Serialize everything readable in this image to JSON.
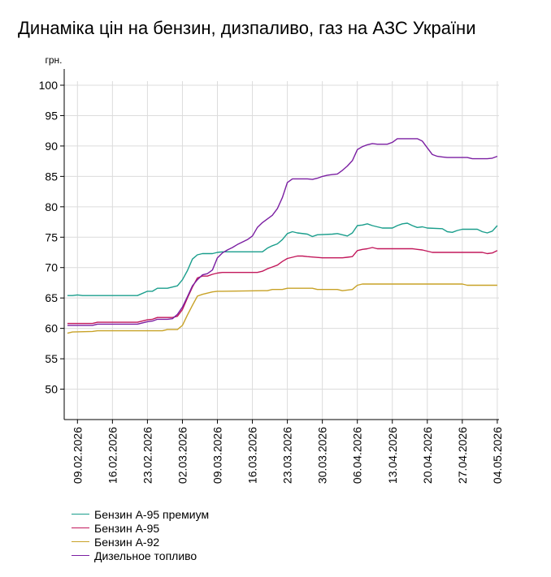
{
  "chart_data": {
    "type": "line",
    "title": "Динаміка цін на бензин, дизпаливо, газ на АЗС України",
    "ylabel": "грн.",
    "xlabel": "",
    "ylim": [
      45,
      100
    ],
    "yticks": [
      50,
      55,
      60,
      65,
      70,
      75,
      80,
      85,
      90,
      95,
      100
    ],
    "grid": true,
    "legend_position": "bottom-left",
    "x_tick_labels": [
      "09.02.2026",
      "16.02.2026",
      "23.02.2026",
      "02.03.2026",
      "09.03.2026",
      "16.03.2026",
      "23.03.2026",
      "30.03.2026",
      "06.04.2026",
      "13.04.2026",
      "20.04.2026",
      "27.04.2026",
      "04.05.2026"
    ],
    "x_start": "07.02.2026",
    "x_end": "04.05.2026",
    "series": [
      {
        "name": "Бензин А-95 премиум",
        "color": "#1a9e8c",
        "points": [
          [
            "07.02.2026",
            65.4
          ],
          [
            "08.02.2026",
            65.4
          ],
          [
            "09.02.2026",
            65.5
          ],
          [
            "10.02.2026",
            65.4
          ],
          [
            "20.02.2026",
            65.4
          ],
          [
            "21.02.2026",
            65.4
          ],
          [
            "23.02.2026",
            66.1
          ],
          [
            "24.02.2026",
            66.1
          ],
          [
            "25.02.2026",
            66.6
          ],
          [
            "27.02.2026",
            66.6
          ],
          [
            "28.02.2026",
            66.8
          ],
          [
            "01.03.2026",
            67.0
          ],
          [
            "02.03.2026",
            68.0
          ],
          [
            "03.03.2026",
            69.5
          ],
          [
            "04.03.2026",
            71.4
          ],
          [
            "05.03.2026",
            72.1
          ],
          [
            "06.03.2026",
            72.3
          ],
          [
            "08.03.2026",
            72.3
          ],
          [
            "09.03.2026",
            72.5
          ],
          [
            "10.03.2026",
            72.6
          ],
          [
            "18.03.2026",
            72.6
          ],
          [
            "19.03.2026",
            73.2
          ],
          [
            "20.03.2026",
            73.6
          ],
          [
            "21.03.2026",
            73.9
          ],
          [
            "22.03.2026",
            74.6
          ],
          [
            "23.03.2026",
            75.6
          ],
          [
            "24.03.2026",
            75.9
          ],
          [
            "25.03.2026",
            75.7
          ],
          [
            "27.03.2026",
            75.5
          ],
          [
            "28.03.2026",
            75.1
          ],
          [
            "29.03.2026",
            75.4
          ],
          [
            "01.04.2026",
            75.5
          ],
          [
            "02.04.2026",
            75.6
          ],
          [
            "03.04.2026",
            75.4
          ],
          [
            "04.04.2026",
            75.2
          ],
          [
            "05.04.2026",
            75.7
          ],
          [
            "06.04.2026",
            76.9
          ],
          [
            "07.04.2026",
            77.0
          ],
          [
            "08.04.2026",
            77.2
          ],
          [
            "09.04.2026",
            76.9
          ],
          [
            "10.04.2026",
            76.7
          ],
          [
            "11.04.2026",
            76.5
          ],
          [
            "13.04.2026",
            76.5
          ],
          [
            "14.04.2026",
            76.9
          ],
          [
            "15.04.2026",
            77.2
          ],
          [
            "16.04.2026",
            77.3
          ],
          [
            "17.04.2026",
            76.9
          ],
          [
            "18.04.2026",
            76.6
          ],
          [
            "19.04.2026",
            76.7
          ],
          [
            "20.04.2026",
            76.5
          ],
          [
            "23.04.2026",
            76.4
          ],
          [
            "24.04.2026",
            75.9
          ],
          [
            "25.04.2026",
            75.8
          ],
          [
            "26.04.2026",
            76.1
          ],
          [
            "27.04.2026",
            76.3
          ],
          [
            "30.04.2026",
            76.3
          ],
          [
            "01.05.2026",
            75.9
          ],
          [
            "02.05.2026",
            75.7
          ],
          [
            "03.05.2026",
            76.0
          ],
          [
            "04.05.2026",
            76.9
          ]
        ]
      },
      {
        "name": "Бензин А-95",
        "color": "#c2185b",
        "points": [
          [
            "07.02.2026",
            60.8
          ],
          [
            "12.02.2026",
            60.8
          ],
          [
            "13.02.2026",
            61.0
          ],
          [
            "20.02.2026",
            61.0
          ],
          [
            "21.02.2026",
            61.0
          ],
          [
            "23.02.2026",
            61.4
          ],
          [
            "24.02.2026",
            61.5
          ],
          [
            "25.02.2026",
            61.8
          ],
          [
            "28.02.2026",
            61.8
          ],
          [
            "01.03.2026",
            62.0
          ],
          [
            "02.03.2026",
            63.1
          ],
          [
            "03.03.2026",
            65.0
          ],
          [
            "04.03.2026",
            66.8
          ],
          [
            "05.03.2026",
            68.3
          ],
          [
            "06.03.2026",
            68.6
          ],
          [
            "07.03.2026",
            68.6
          ],
          [
            "08.03.2026",
            68.9
          ],
          [
            "09.03.2026",
            69.1
          ],
          [
            "10.03.2026",
            69.2
          ],
          [
            "17.03.2026",
            69.2
          ],
          [
            "18.03.2026",
            69.4
          ],
          [
            "19.03.2026",
            69.8
          ],
          [
            "20.03.2026",
            70.1
          ],
          [
            "21.03.2026",
            70.4
          ],
          [
            "22.03.2026",
            71.0
          ],
          [
            "23.03.2026",
            71.5
          ],
          [
            "24.03.2026",
            71.7
          ],
          [
            "25.03.2026",
            71.9
          ],
          [
            "26.03.2026",
            71.9
          ],
          [
            "27.03.2026",
            71.8
          ],
          [
            "30.03.2026",
            71.6
          ],
          [
            "03.04.2026",
            71.6
          ],
          [
            "04.04.2026",
            71.7
          ],
          [
            "05.04.2026",
            71.8
          ],
          [
            "06.04.2026",
            72.8
          ],
          [
            "07.04.2026",
            73.0
          ],
          [
            "08.04.2026",
            73.1
          ],
          [
            "09.04.2026",
            73.3
          ],
          [
            "10.04.2026",
            73.1
          ],
          [
            "17.04.2026",
            73.1
          ],
          [
            "18.04.2026",
            73.0
          ],
          [
            "19.04.2026",
            72.9
          ],
          [
            "20.04.2026",
            72.7
          ],
          [
            "21.04.2026",
            72.5
          ],
          [
            "01.05.2026",
            72.5
          ],
          [
            "02.05.2026",
            72.3
          ],
          [
            "03.05.2026",
            72.4
          ],
          [
            "04.05.2026",
            72.8
          ]
        ]
      },
      {
        "name": "Бензин А-92",
        "color": "#c8a227",
        "points": [
          [
            "07.02.2026",
            59.2
          ],
          [
            "08.02.2026",
            59.4
          ],
          [
            "12.02.2026",
            59.5
          ],
          [
            "13.02.2026",
            59.6
          ],
          [
            "26.02.2026",
            59.6
          ],
          [
            "27.02.2026",
            59.8
          ],
          [
            "01.03.2026",
            59.8
          ],
          [
            "02.03.2026",
            60.5
          ],
          [
            "03.03.2026",
            62.2
          ],
          [
            "04.03.2026",
            63.8
          ],
          [
            "05.03.2026",
            65.3
          ],
          [
            "06.03.2026",
            65.6
          ],
          [
            "07.03.2026",
            65.8
          ],
          [
            "08.03.2026",
            66.0
          ],
          [
            "09.03.2026",
            66.1
          ],
          [
            "10.03.2026",
            66.1
          ],
          [
            "18.03.2026",
            66.2
          ],
          [
            "19.03.2026",
            66.2
          ],
          [
            "20.03.2026",
            66.4
          ],
          [
            "22.03.2026",
            66.4
          ],
          [
            "23.03.2026",
            66.6
          ],
          [
            "28.03.2026",
            66.6
          ],
          [
            "29.03.2026",
            66.4
          ],
          [
            "02.04.2026",
            66.4
          ],
          [
            "03.04.2026",
            66.2
          ],
          [
            "05.04.2026",
            66.4
          ],
          [
            "06.04.2026",
            67.1
          ],
          [
            "07.04.2026",
            67.3
          ],
          [
            "20.04.2026",
            67.3
          ],
          [
            "26.04.2026",
            67.3
          ],
          [
            "27.04.2026",
            67.3
          ],
          [
            "28.04.2026",
            67.1
          ],
          [
            "04.05.2026",
            67.1
          ]
        ]
      },
      {
        "name": "Дизельное топливо",
        "color": "#7b1fa2",
        "points": [
          [
            "07.02.2026",
            60.5
          ],
          [
            "12.02.2026",
            60.5
          ],
          [
            "13.02.2026",
            60.7
          ],
          [
            "20.02.2026",
            60.7
          ],
          [
            "21.02.2026",
            60.7
          ],
          [
            "23.02.2026",
            61.1
          ],
          [
            "24.02.2026",
            61.2
          ],
          [
            "25.02.2026",
            61.5
          ],
          [
            "27.02.2026",
            61.5
          ],
          [
            "28.02.2026",
            61.6
          ],
          [
            "01.03.2026",
            62.3
          ],
          [
            "02.03.2026",
            63.5
          ],
          [
            "03.03.2026",
            65.2
          ],
          [
            "04.03.2026",
            67.0
          ],
          [
            "05.03.2026",
            68.0
          ],
          [
            "06.03.2026",
            68.8
          ],
          [
            "07.03.2026",
            69.0
          ],
          [
            "08.03.2026",
            69.6
          ],
          [
            "09.03.2026",
            71.6
          ],
          [
            "10.03.2026",
            72.4
          ],
          [
            "11.03.2026",
            72.9
          ],
          [
            "12.03.2026",
            73.3
          ],
          [
            "13.03.2026",
            73.8
          ],
          [
            "14.03.2026",
            74.2
          ],
          [
            "15.03.2026",
            74.6
          ],
          [
            "16.03.2026",
            75.2
          ],
          [
            "17.03.2026",
            76.6
          ],
          [
            "18.03.2026",
            77.4
          ],
          [
            "19.03.2026",
            78.0
          ],
          [
            "20.03.2026",
            78.6
          ],
          [
            "21.03.2026",
            79.7
          ],
          [
            "22.03.2026",
            81.5
          ],
          [
            "23.03.2026",
            84.0
          ],
          [
            "24.03.2026",
            84.6
          ],
          [
            "27.03.2026",
            84.6
          ],
          [
            "28.03.2026",
            84.5
          ],
          [
            "29.03.2026",
            84.7
          ],
          [
            "30.03.2026",
            85.0
          ],
          [
            "31.03.2026",
            85.2
          ],
          [
            "01.04.2026",
            85.3
          ],
          [
            "02.04.2026",
            85.4
          ],
          [
            "03.04.2026",
            86.0
          ],
          [
            "04.04.2026",
            86.7
          ],
          [
            "05.04.2026",
            87.6
          ],
          [
            "06.04.2026",
            89.4
          ],
          [
            "07.04.2026",
            89.9
          ],
          [
            "08.04.2026",
            90.2
          ],
          [
            "09.04.2026",
            90.4
          ],
          [
            "10.04.2026",
            90.3
          ],
          [
            "12.04.2026",
            90.3
          ],
          [
            "13.04.2026",
            90.6
          ],
          [
            "14.04.2026",
            91.2
          ],
          [
            "18.04.2026",
            91.2
          ],
          [
            "19.04.2026",
            90.8
          ],
          [
            "20.04.2026",
            89.7
          ],
          [
            "21.04.2026",
            88.6
          ],
          [
            "22.04.2026",
            88.3
          ],
          [
            "23.04.2026",
            88.2
          ],
          [
            "24.04.2026",
            88.1
          ],
          [
            "28.04.2026",
            88.1
          ],
          [
            "29.04.2026",
            87.9
          ],
          [
            "02.05.2026",
            87.9
          ],
          [
            "03.05.2026",
            88.0
          ],
          [
            "04.05.2026",
            88.3
          ]
        ]
      }
    ]
  }
}
